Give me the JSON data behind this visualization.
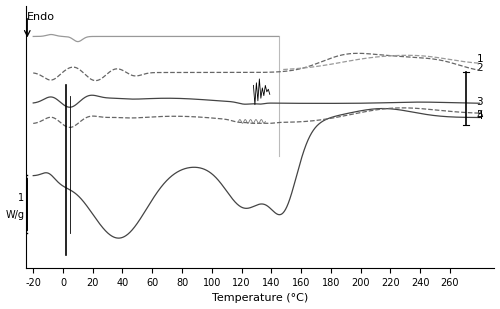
{
  "xlim": [
    -20,
    280
  ],
  "xticks": [
    -20,
    0,
    20,
    40,
    60,
    80,
    100,
    120,
    140,
    160,
    180,
    200,
    220,
    240,
    260
  ],
  "xlabel": "Temperature (°C)",
  "endo_label": "Endo",
  "scale_label_1": "1",
  "scale_label_2": "W/g",
  "curve_labels": [
    "1",
    "2",
    "3",
    "4",
    "5"
  ],
  "background_color": "#ffffff",
  "gray_dark": "#444444",
  "gray_mid": "#666666",
  "gray_light": "#999999"
}
